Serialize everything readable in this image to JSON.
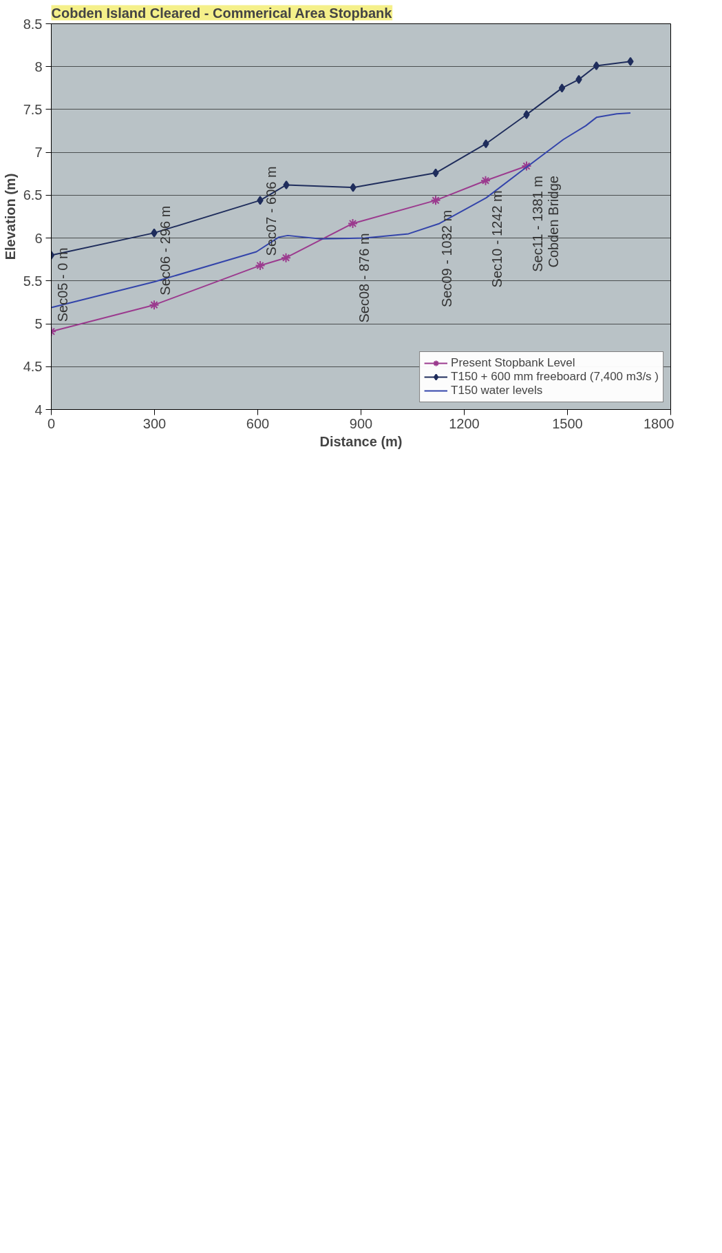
{
  "chart_data": {
    "type": "line",
    "title": "Cobden Island Cleared - Commerical Area Stopbank",
    "xlabel": "Distance (m)",
    "ylabel": "Elevation (m)",
    "xlim": [
      0,
      1800
    ],
    "xticks": [
      0,
      300,
      600,
      900,
      1200,
      1500,
      1800
    ],
    "ylim": [
      4,
      8.5
    ],
    "yticks": [
      4,
      4.5,
      5,
      5.5,
      6,
      6.5,
      7,
      7.5,
      8,
      8.5
    ],
    "grid": "y",
    "legend": "bottom right",
    "line_style": "solid",
    "series": [
      {
        "name": "Present Stopbank Level",
        "color": "#9b3a8e",
        "marker": "cross",
        "x": [
          0,
          299,
          607,
          682,
          876,
          1117,
          1262,
          1381
        ],
        "values": [
          4.91,
          5.22,
          5.68,
          5.77,
          6.17,
          6.44,
          6.67,
          6.84
        ]
      },
      {
        "name": "T150 + 600 mm freeboard (7,400 m3/s )",
        "color": "#1f2d5c",
        "marker": "diamond",
        "x": [
          0,
          299,
          607,
          683,
          877,
          1117,
          1263,
          1381,
          1484,
          1533,
          1584,
          1683
        ],
        "values": [
          5.8,
          6.06,
          6.44,
          6.62,
          6.59,
          6.76,
          7.1,
          7.44,
          7.75,
          7.85,
          8.01,
          8.06
        ]
      },
      {
        "name": "T150 water levels",
        "color": "#3344aa",
        "marker": "none",
        "x": [
          0,
          300,
          596,
          661,
          687,
          782,
          912,
          1038,
          1128,
          1214,
          1264,
          1372,
          1488,
          1553,
          1585,
          1643,
          1683
        ],
        "values": [
          5.19,
          5.49,
          5.84,
          6.01,
          6.03,
          5.99,
          6.0,
          6.05,
          6.17,
          6.36,
          6.47,
          6.8,
          7.15,
          7.31,
          7.41,
          7.45,
          7.46
        ]
      }
    ],
    "annotations": [
      {
        "text": "Sec05 - 0 m",
        "x": 0,
        "y": 4.91
      },
      {
        "text": "Sec06 - 296 m",
        "x": 299,
        "y": 5.22
      },
      {
        "text": "Sec07 - 606 m",
        "x": 607,
        "y": 5.68
      },
      {
        "text": "Sec08 - 876 m",
        "x": 876,
        "y": 6.17
      },
      {
        "text": "Sec09 - 1032 m",
        "x": 1117,
        "y": 6.44
      },
      {
        "text": "Sec10 - 1242 m",
        "x": 1262,
        "y": 6.67
      },
      {
        "text": "Sec11 - 1381 m\nCobden Bridge",
        "x": 1381,
        "y": 6.84
      }
    ]
  }
}
